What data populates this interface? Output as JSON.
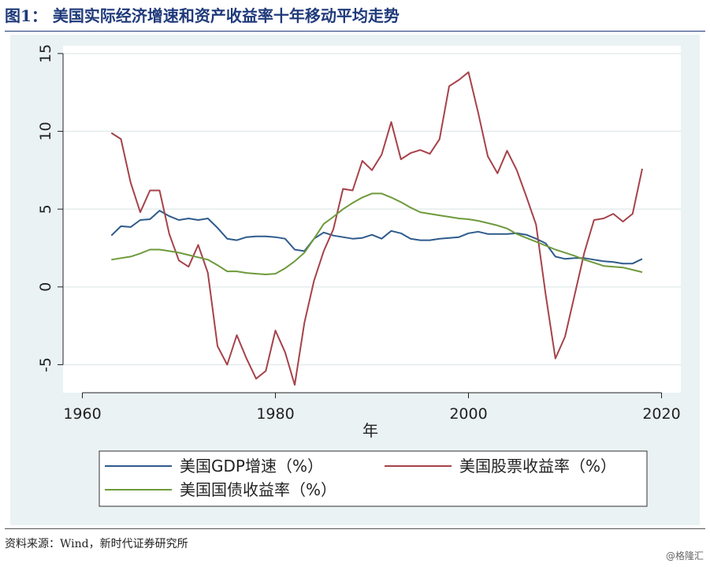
{
  "header": {
    "title": "图1：  美国实际经济增速和资产收益率十年移动平均走势"
  },
  "footer": {
    "source": "资料来源：Wind，新时代证券研究所",
    "watermark": "@格隆汇"
  },
  "chart_data": {
    "type": "line",
    "xlabel": "年",
    "ylabel": "",
    "xlim": [
      1958,
      2022
    ],
    "ylim": [
      -6.8,
      15.5
    ],
    "xticks": [
      1960,
      1980,
      2000,
      2020
    ],
    "yticks": [
      -5,
      0,
      5,
      10,
      15
    ],
    "grid": "horizontal",
    "legend_position": "bottom",
    "series": [
      {
        "name": "美国GDP增速（%）",
        "color": "#2f5b8c",
        "x": [
          1963,
          1964,
          1965,
          1966,
          1967,
          1968,
          1969,
          1970,
          1971,
          1972,
          1973,
          1974,
          1975,
          1976,
          1977,
          1978,
          1979,
          1980,
          1981,
          1982,
          1983,
          1984,
          1985,
          1986,
          1987,
          1988,
          1989,
          1990,
          1991,
          1992,
          1993,
          1994,
          1995,
          1996,
          1997,
          1998,
          1999,
          2000,
          2001,
          2002,
          2003,
          2004,
          2005,
          2006,
          2007,
          2008,
          2009,
          2010,
          2011,
          2012,
          2013,
          2014,
          2015,
          2016,
          2017,
          2018
        ],
        "values": [
          3.3,
          3.9,
          3.85,
          4.3,
          4.35,
          4.9,
          4.55,
          4.3,
          4.4,
          4.3,
          4.4,
          3.8,
          3.1,
          3.0,
          3.2,
          3.25,
          3.25,
          3.2,
          3.1,
          2.4,
          2.3,
          3.1,
          3.5,
          3.3,
          3.2,
          3.1,
          3.15,
          3.35,
          3.1,
          3.6,
          3.45,
          3.1,
          3.0,
          3.0,
          3.1,
          3.15,
          3.2,
          3.45,
          3.55,
          3.4,
          3.4,
          3.4,
          3.45,
          3.35,
          3.1,
          2.8,
          1.95,
          1.8,
          1.85,
          1.85,
          1.75,
          1.65,
          1.6,
          1.5,
          1.5,
          1.8
        ]
      },
      {
        "name": "美国股票收益率（%）",
        "color": "#a6424a",
        "x": [
          1963,
          1964,
          1965,
          1966,
          1967,
          1968,
          1969,
          1970,
          1971,
          1972,
          1973,
          1974,
          1975,
          1976,
          1977,
          1978,
          1979,
          1980,
          1981,
          1982,
          1983,
          1984,
          1985,
          1986,
          1987,
          1988,
          1989,
          1990,
          1991,
          1992,
          1993,
          1994,
          1995,
          1996,
          1997,
          1998,
          1999,
          2000,
          2001,
          2002,
          2003,
          2004,
          2005,
          2006,
          2007,
          2008,
          2009,
          2010,
          2011,
          2012,
          2013,
          2014,
          2015,
          2016,
          2017,
          2018
        ],
        "values": [
          9.9,
          9.5,
          6.7,
          4.8,
          6.2,
          6.2,
          3.4,
          1.7,
          1.3,
          2.7,
          0.9,
          -3.8,
          -5.0,
          -3.1,
          -4.6,
          -5.9,
          -5.4,
          -2.8,
          -4.2,
          -6.3,
          -2.3,
          0.4,
          2.3,
          3.7,
          6.3,
          6.2,
          8.1,
          7.5,
          8.5,
          10.6,
          8.2,
          8.6,
          8.8,
          8.55,
          9.5,
          12.9,
          13.3,
          13.8,
          11.2,
          8.4,
          7.3,
          8.75,
          7.5,
          5.8,
          4.0,
          -0.5,
          -4.6,
          -3.2,
          -0.5,
          2.2,
          4.3,
          4.4,
          4.7,
          4.2,
          4.7,
          7.6
        ]
      },
      {
        "name": "美国国债收益率（%）",
        "color": "#6e9a3c",
        "x": [
          1963,
          1964,
          1965,
          1966,
          1967,
          1968,
          1969,
          1970,
          1971,
          1972,
          1973,
          1974,
          1975,
          1976,
          1977,
          1978,
          1979,
          1980,
          1981,
          1982,
          1983,
          1984,
          1985,
          1986,
          1987,
          1988,
          1989,
          1990,
          1991,
          1992,
          1993,
          1994,
          1995,
          1996,
          1997,
          1998,
          1999,
          2000,
          2001,
          2002,
          2003,
          2004,
          2005,
          2006,
          2007,
          2008,
          2009,
          2010,
          2011,
          2012,
          2013,
          2014,
          2015,
          2016,
          2017,
          2018
        ],
        "values": [
          1.75,
          1.85,
          1.95,
          2.15,
          2.4,
          2.4,
          2.3,
          2.2,
          2.05,
          1.9,
          1.75,
          1.4,
          1.0,
          1.0,
          0.9,
          0.85,
          0.8,
          0.85,
          1.2,
          1.65,
          2.2,
          3.1,
          4.05,
          4.5,
          5.0,
          5.4,
          5.75,
          6.0,
          6.0,
          5.75,
          5.45,
          5.1,
          4.8,
          4.7,
          4.6,
          4.5,
          4.4,
          4.35,
          4.25,
          4.1,
          3.95,
          3.75,
          3.4,
          3.15,
          2.9,
          2.65,
          2.4,
          2.2,
          2.0,
          1.75,
          1.55,
          1.35,
          1.3,
          1.25,
          1.1,
          0.95
        ]
      }
    ]
  }
}
